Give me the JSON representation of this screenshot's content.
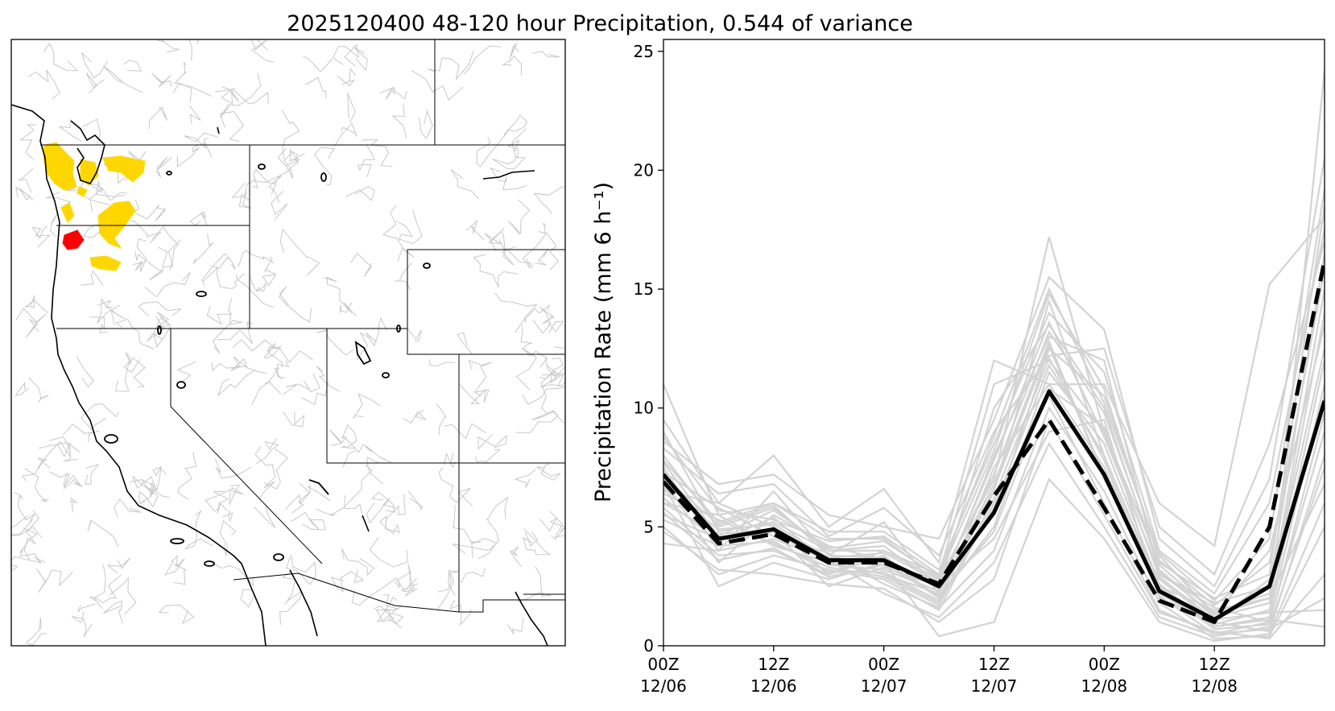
{
  "figure": {
    "title": "2025120400 48-120 hour Precipitation, 0.544 of variance"
  },
  "colors": {
    "ensemble": "#d3d3d3",
    "mean": "#000000",
    "dashed": "#000000",
    "highlight_yellow": "#ffd700",
    "highlight_red": "#ff0000",
    "basin_lines": "#c8c8c8",
    "boundaries": "#000000"
  },
  "map": {
    "description_labels": [],
    "highlighted_basins": [
      {
        "name": "yellow",
        "color_key": "highlight_yellow"
      },
      {
        "name": "red",
        "color_key": "highlight_red"
      }
    ]
  },
  "chart_data": {
    "type": "line",
    "ylabel": "Precipitation Rate (mm 6 h⁻¹)",
    "xlabel": "",
    "ylim": [
      0,
      25.5
    ],
    "yticks": [
      0,
      5,
      10,
      15,
      20,
      25
    ],
    "x": [
      0,
      1,
      2,
      3,
      4,
      5,
      6,
      7,
      8,
      9,
      10,
      11,
      12
    ],
    "xlim": [
      0,
      12
    ],
    "xticks": [
      {
        "pos": 0,
        "line1": "00Z",
        "line2": "12/06"
      },
      {
        "pos": 2,
        "line1": "12Z",
        "line2": "12/06"
      },
      {
        "pos": 4,
        "line1": "00Z",
        "line2": "12/07"
      },
      {
        "pos": 6,
        "line1": "12Z",
        "line2": "12/07"
      },
      {
        "pos": 8,
        "line1": "00Z",
        "line2": "12/08"
      },
      {
        "pos": 10,
        "line1": "12Z",
        "line2": "12/08"
      }
    ],
    "series": [
      {
        "style": "solid-bold",
        "values": [
          7.2,
          4.5,
          4.9,
          3.6,
          3.6,
          2.5,
          5.6,
          10.7,
          7.2,
          2.3,
          1.1,
          2.5,
          10.3
        ]
      },
      {
        "style": "dashed-bold",
        "values": [
          6.9,
          4.3,
          4.7,
          3.5,
          3.5,
          2.6,
          6.3,
          9.5,
          5.8,
          1.9,
          1.0,
          5.0,
          16.2
        ]
      }
    ],
    "ensemble": [
      [
        11.0,
        5.5,
        6.0,
        4.5,
        4.5,
        2.8,
        7.0,
        17.2,
        9.0,
        3.0,
        1.6,
        1.0,
        24.2
      ],
      [
        9.5,
        6.0,
        8.0,
        5.0,
        6.6,
        3.5,
        12.0,
        11.0,
        11.0,
        6.0,
        4.2,
        15.2,
        18.0
      ],
      [
        8.6,
        6.8,
        7.2,
        5.5,
        5.0,
        4.5,
        9.5,
        15.5,
        13.3,
        4.5,
        2.5,
        7.0,
        20.5
      ],
      [
        8.0,
        5.0,
        5.8,
        4.0,
        4.0,
        3.0,
        11.0,
        12.0,
        9.0,
        3.5,
        2.0,
        3.0,
        18.5
      ],
      [
        7.5,
        4.0,
        6.5,
        3.8,
        5.2,
        2.2,
        8.0,
        13.0,
        12.0,
        3.0,
        1.8,
        2.5,
        16.5
      ],
      [
        7.0,
        3.5,
        5.5,
        4.2,
        3.6,
        2.0,
        6.5,
        14.5,
        8.0,
        2.5,
        1.5,
        2.0,
        15.0
      ],
      [
        6.5,
        6.0,
        5.0,
        3.0,
        4.0,
        2.8,
        5.5,
        12.5,
        10.5,
        3.8,
        1.3,
        4.0,
        13.5
      ],
      [
        6.0,
        5.5,
        4.2,
        3.5,
        3.0,
        1.8,
        7.5,
        11.0,
        7.5,
        2.2,
        0.9,
        1.5,
        12.0
      ],
      [
        5.5,
        4.5,
        4.8,
        2.5,
        3.3,
        2.5,
        4.5,
        9.0,
        9.5,
        2.0,
        1.0,
        2.8,
        10.5
      ],
      [
        5.0,
        3.0,
        3.8,
        3.2,
        2.8,
        1.5,
        6.0,
        10.5,
        6.0,
        1.5,
        0.5,
        1.0,
        9.0
      ],
      [
        4.3,
        4.0,
        4.5,
        3.6,
        2.2,
        1.2,
        3.5,
        8.5,
        5.0,
        1.2,
        0.4,
        0.8,
        7.5
      ],
      [
        6.8,
        2.5,
        3.5,
        2.8,
        3.5,
        0.4,
        1.0,
        7.0,
        4.5,
        1.0,
        0.2,
        0.5,
        6.0
      ],
      [
        7.8,
        5.2,
        6.0,
        4.8,
        4.8,
        3.2,
        8.5,
        14.0,
        11.5,
        4.0,
        2.2,
        6.0,
        17.5
      ],
      [
        9.0,
        4.8,
        5.2,
        4.0,
        4.2,
        2.5,
        10.0,
        13.5,
        10.0,
        3.2,
        1.2,
        1.8,
        14.0
      ],
      [
        5.8,
        3.8,
        4.0,
        3.0,
        3.8,
        2.0,
        5.0,
        11.5,
        8.5,
        2.6,
        0.8,
        1.2,
        11.0
      ],
      [
        6.2,
        4.4,
        5.4,
        3.4,
        3.2,
        2.3,
        6.8,
        12.8,
        7.0,
        2.8,
        1.0,
        0.6,
        8.0
      ],
      [
        7.3,
        5.8,
        4.6,
        3.9,
        2.6,
        1.6,
        4.0,
        10.0,
        6.5,
        1.8,
        0.3,
        0.4,
        5.0
      ],
      [
        4.8,
        3.2,
        3.0,
        2.6,
        2.4,
        1.0,
        2.8,
        9.5,
        5.5,
        1.4,
        0.6,
        0.3,
        3.0
      ],
      [
        8.3,
        6.4,
        6.8,
        4.6,
        5.8,
        3.8,
        9.0,
        12.2,
        12.5,
        5.0,
        3.0,
        8.5,
        17.0
      ],
      [
        6.6,
        4.9,
        5.1,
        3.7,
        3.9,
        2.7,
        7.2,
        13.2,
        9.8,
        3.4,
        1.4,
        2.2,
        12.5
      ],
      [
        5.3,
        4.2,
        4.4,
        3.1,
        3.1,
        1.9,
        5.8,
        11.8,
        8.0,
        2.4,
        0.7,
        0.9,
        9.8
      ],
      [
        7.7,
        4.6,
        5.7,
        4.1,
        4.4,
        2.9,
        8.2,
        14.8,
        10.8,
        3.6,
        1.7,
        3.5,
        15.8
      ],
      [
        6.4,
        5.3,
        4.3,
        3.3,
        2.9,
        1.7,
        6.2,
        12.1,
        7.8,
        2.1,
        0.5,
        0.7,
        2.0
      ],
      [
        5.6,
        3.6,
        4.1,
        2.9,
        3.4,
        2.1,
        4.8,
        10.8,
        9.2,
        2.9,
        1.1,
        1.4,
        1.5
      ],
      [
        7.1,
        5.1,
        5.9,
        3.8,
        3.7,
        2.4,
        7.8,
        13.6,
        8.8,
        3.1,
        1.3,
        2.0,
        6.8
      ],
      [
        8.8,
        5.7,
        5.3,
        4.4,
        4.6,
        3.0,
        8.8,
        15.0,
        10.2,
        3.9,
        1.9,
        4.5,
        19.2
      ],
      [
        6.0,
        4.7,
        4.9,
        3.5,
        3.0,
        2.2,
        6.6,
        12.6,
        7.2,
        2.5,
        0.8,
        1.1,
        0.8
      ]
    ]
  }
}
